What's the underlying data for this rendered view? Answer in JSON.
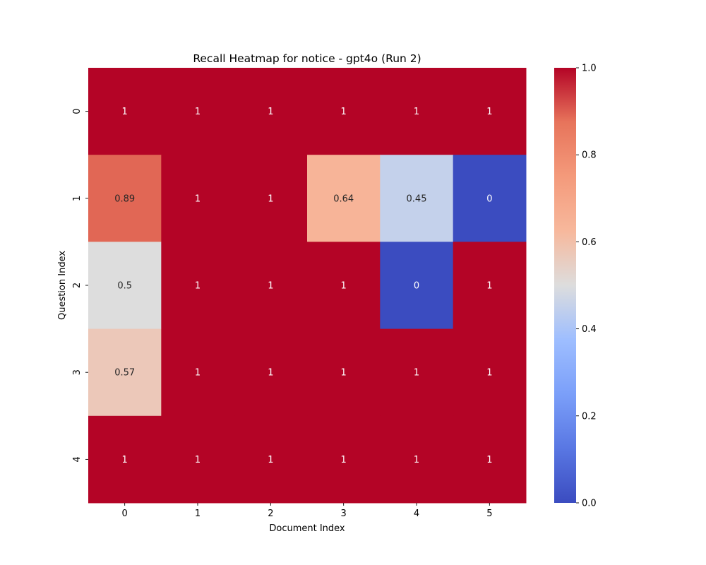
{
  "chart_data": {
    "type": "heatmap",
    "title": "Recall Heatmap for notice - gpt4o (Run 2)",
    "xlabel": "Document Index",
    "ylabel": "Question Index",
    "x_categories": [
      "0",
      "1",
      "2",
      "3",
      "4",
      "5"
    ],
    "y_categories": [
      "0",
      "1",
      "2",
      "3",
      "4"
    ],
    "values": [
      [
        1,
        1,
        1,
        1,
        1,
        1
      ],
      [
        0.89,
        1,
        1,
        0.64,
        0.45,
        0
      ],
      [
        0.5,
        1,
        1,
        1,
        0,
        1
      ],
      [
        0.57,
        1,
        1,
        1,
        1,
        1
      ],
      [
        1,
        1,
        1,
        1,
        1,
        1
      ]
    ],
    "cell_labels": [
      [
        "1",
        "1",
        "1",
        "1",
        "1",
        "1"
      ],
      [
        "0.89",
        "1",
        "1",
        "0.64",
        "0.45",
        "0"
      ],
      [
        "0.5",
        "1",
        "1",
        "1",
        "0",
        "1"
      ],
      [
        "0.57",
        "1",
        "1",
        "1",
        "1",
        "1"
      ],
      [
        "1",
        "1",
        "1",
        "1",
        "1",
        "1"
      ]
    ],
    "colormap": "coolwarm",
    "colorbar": {
      "range": [
        0.0,
        1.0
      ],
      "ticks": [
        0.0,
        0.2,
        0.4,
        0.6,
        0.8,
        1.0
      ],
      "tick_labels": [
        "0.0",
        "0.2",
        "0.4",
        "0.6",
        "0.8",
        "1.0"
      ]
    },
    "grid": false
  }
}
